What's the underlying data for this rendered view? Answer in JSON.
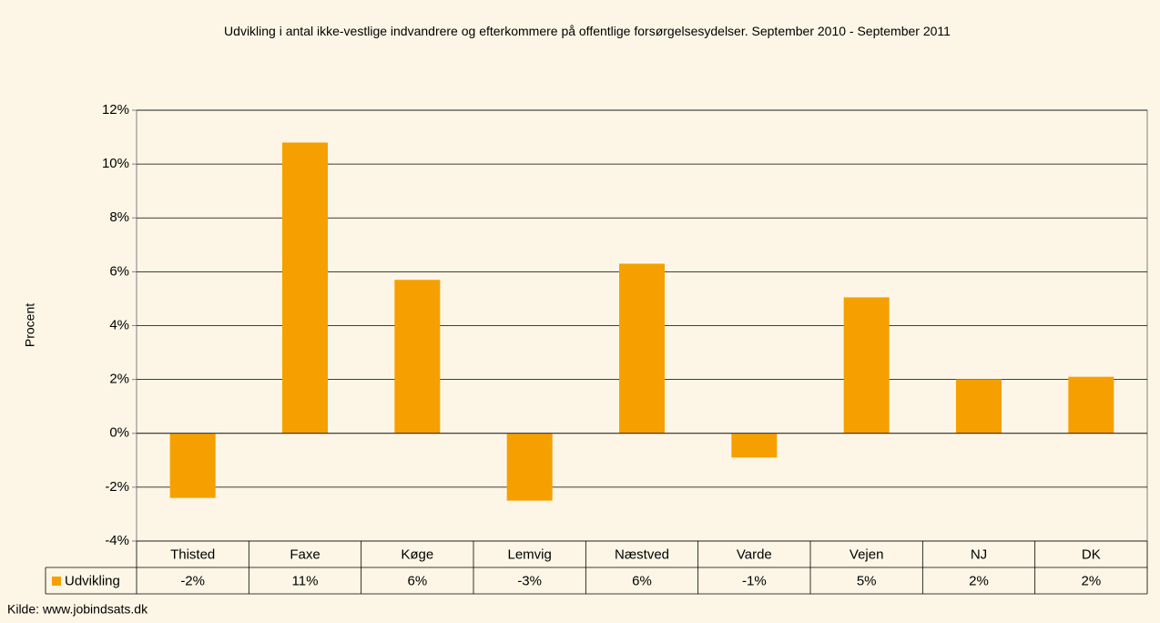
{
  "chart_data": {
    "type": "bar",
    "title": "Udvikling i antal ikke-vestlige indvandrere og efterkommere på offentlige forsørgelsesydelser. September 2010 - September 2011",
    "y_label": "Procent",
    "source": "Kilde: www.jobindsats.dk",
    "categories": [
      "Thisted",
      "Faxe",
      "Køge",
      "Lemvig",
      "Næstved",
      "Varde",
      "Vejen",
      "NJ",
      "DK"
    ],
    "series": [
      {
        "name": "Udvikling",
        "color": "#f5a000",
        "values": [
          -2.4,
          10.8,
          5.7,
          -2.5,
          6.3,
          -0.9,
          5.05,
          2.0,
          2.1
        ],
        "value_labels": [
          "-2%",
          "11%",
          "6%",
          "-3%",
          "6%",
          "-1%",
          "5%",
          "2%",
          "2%"
        ]
      }
    ],
    "ylim": [
      -4,
      12
    ],
    "yticks": [
      {
        "value": -4,
        "label": "-4%"
      },
      {
        "value": -2,
        "label": "-2%"
      },
      {
        "value": 0,
        "label": "0%"
      },
      {
        "value": 2,
        "label": "2%"
      },
      {
        "value": 4,
        "label": "4%"
      },
      {
        "value": 6,
        "label": "6%"
      },
      {
        "value": 8,
        "label": "8%"
      },
      {
        "value": 10,
        "label": "10%"
      },
      {
        "value": 12,
        "label": "12%"
      }
    ],
    "grid": true
  }
}
